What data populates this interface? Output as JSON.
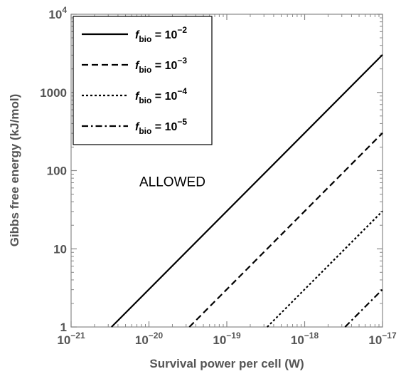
{
  "chart_data": {
    "type": "line",
    "xlabel": "Survival power per cell (W)",
    "ylabel": "Gibbs free energy (kJ/mol)",
    "x_scale": "log",
    "y_scale": "log",
    "xlim": [
      1e-21,
      1e-17
    ],
    "ylim": [
      1,
      10000
    ],
    "x_ticks": [
      {
        "value": 1e-21,
        "base": "10",
        "exp": "−21"
      },
      {
        "value": 1e-20,
        "base": "10",
        "exp": "−20"
      },
      {
        "value": 1e-19,
        "base": "10",
        "exp": "−19"
      },
      {
        "value": 1e-18,
        "base": "10",
        "exp": "−18"
      },
      {
        "value": 1e-17,
        "base": "10",
        "exp": "−17"
      }
    ],
    "y_ticks": [
      {
        "value": 1,
        "base": "1",
        "exp": ""
      },
      {
        "value": 10,
        "base": "10",
        "exp": ""
      },
      {
        "value": 100,
        "base": "100",
        "exp": ""
      },
      {
        "value": 1000,
        "base": "1000",
        "exp": ""
      },
      {
        "value": 10000,
        "base": "10",
        "exp": "4"
      }
    ],
    "series": [
      {
        "name": "f_bio = 10^-2",
        "label_main": "f",
        "label_sub": "bio",
        "label_eq": " = 10",
        "label_exp": "−2",
        "dash": "solid",
        "x": [
          3.3e-21,
          1e-17
        ],
        "y": [
          1,
          3030
        ]
      },
      {
        "name": "f_bio = 10^-3",
        "label_main": "f",
        "label_sub": "bio",
        "label_eq": " = 10",
        "label_exp": "−3",
        "dash": "dashed",
        "x": [
          3.3e-20,
          1e-17
        ],
        "y": [
          1,
          303
        ]
      },
      {
        "name": "f_bio = 10^-4",
        "label_main": "f",
        "label_sub": "bio",
        "label_eq": " = 10",
        "label_exp": "−4",
        "dash": "dotted",
        "x": [
          3.3e-19,
          1e-17
        ],
        "y": [
          1,
          30.3
        ]
      },
      {
        "name": "f_bio = 10^-5",
        "label_main": "f",
        "label_sub": "bio",
        "label_eq": " = 10",
        "label_exp": "−5",
        "dash": "dashdot",
        "x": [
          3.3e-18,
          1e-17
        ],
        "y": [
          1,
          3.03
        ]
      }
    ],
    "annotations": [
      {
        "text": "ALLOWED",
        "x": 2e-20,
        "y": 100
      }
    ],
    "legend": {
      "placement": "top-left"
    },
    "grid": false
  }
}
